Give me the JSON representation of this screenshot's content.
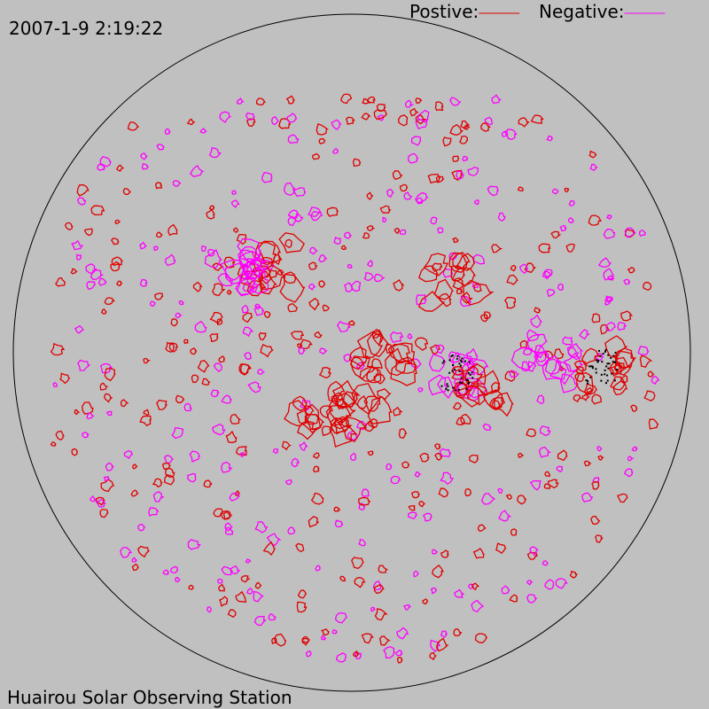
{
  "timestamp": "2007-1-9 2:19:22",
  "legend": [
    {
      "label": "Postive:",
      "color": "#e00000"
    },
    {
      "label": "Negative:",
      "color": "#ff00ff"
    }
  ],
  "footer": "Huairou Solar Observing Station"
}
